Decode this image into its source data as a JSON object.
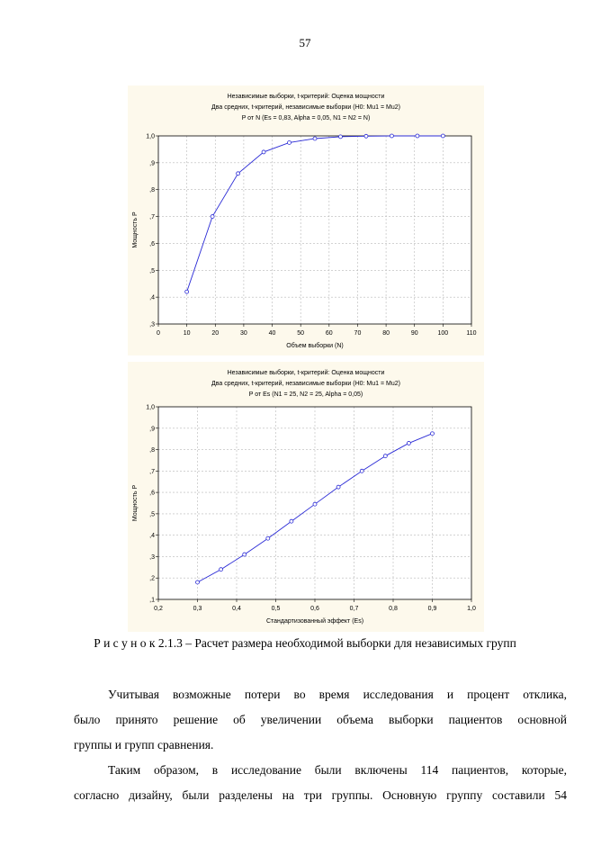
{
  "page_number": "57",
  "chart_data": [
    {
      "type": "line",
      "title": "Независимые выборки, t-критерий: Оценка мощности",
      "subtitle_lines": [
        "Два средних, t-критерий, независимые выборки (H0:  Mu1 = Mu2)",
        "P от N (Es = 0,83, Alpha = 0,05, N1 = N2 = N)"
      ],
      "xlabel": "Объем выборки (N)",
      "ylabel": "Мощность P",
      "xlim": [
        0,
        110
      ],
      "ylim": [
        0.3,
        1.0
      ],
      "x_ticks": [
        "0",
        "10",
        "20",
        "30",
        "40",
        "50",
        "60",
        "70",
        "80",
        "90",
        "100",
        "110"
      ],
      "y_ticks": [
        ",3",
        ",4",
        ",5",
        ",6",
        ",7",
        ",8",
        ",9",
        "1,0"
      ],
      "grid": true,
      "line_color": "#2b2bd6",
      "x": [
        10,
        19,
        28,
        37,
        46,
        55,
        64,
        73,
        82,
        91,
        100
      ],
      "y": [
        0.42,
        0.7,
        0.86,
        0.94,
        0.975,
        0.99,
        0.997,
        0.999,
        1.0,
        1.0,
        1.0
      ]
    },
    {
      "type": "line",
      "title": "Независимые выборки, t-критерий: Оценка мощности",
      "subtitle_lines": [
        "Два средних, t-критерий, независимые выборки (H0:  Mu1 = Mu2)",
        "P от Es (N1 = 25, N2 = 25, Alpha = 0,05)"
      ],
      "xlabel": "Стандартизованный эффект (Es)",
      "ylabel": "Мощность P",
      "xlim": [
        0.2,
        1.0
      ],
      "ylim": [
        0.1,
        1.0
      ],
      "x_ticks": [
        "0,2",
        "0,3",
        "0,4",
        "0,5",
        "0,6",
        "0,7",
        "0,8",
        "0,9",
        "1,0"
      ],
      "y_ticks": [
        ",1",
        ",2",
        ",3",
        ",4",
        ",5",
        ",6",
        ",7",
        ",8",
        ",9",
        "1,0"
      ],
      "grid": true,
      "line_color": "#2b2bd6",
      "x": [
        0.3,
        0.36,
        0.42,
        0.48,
        0.54,
        0.6,
        0.66,
        0.72,
        0.78,
        0.84,
        0.9
      ],
      "y": [
        0.18,
        0.24,
        0.31,
        0.385,
        0.465,
        0.545,
        0.625,
        0.7,
        0.77,
        0.83,
        0.875
      ]
    }
  ],
  "caption": {
    "label": "Р и с у н о к 2.1.3",
    "text": " – Расчет размера необходимой выборки для независимых групп"
  },
  "paragraphs": [
    {
      "lines": [
        "Учитывая возможные потери во время исследования и процент отклика,",
        "было принято решение об увеличении объема выборки пациентов основной",
        "группы и групп сравнения."
      ]
    },
    {
      "lines": [
        "Таким образом, в исследование были включены 114 пациентов, которые,",
        "согласно дизайну, были разделены на три группы. Основную группу составили 54"
      ]
    }
  ]
}
